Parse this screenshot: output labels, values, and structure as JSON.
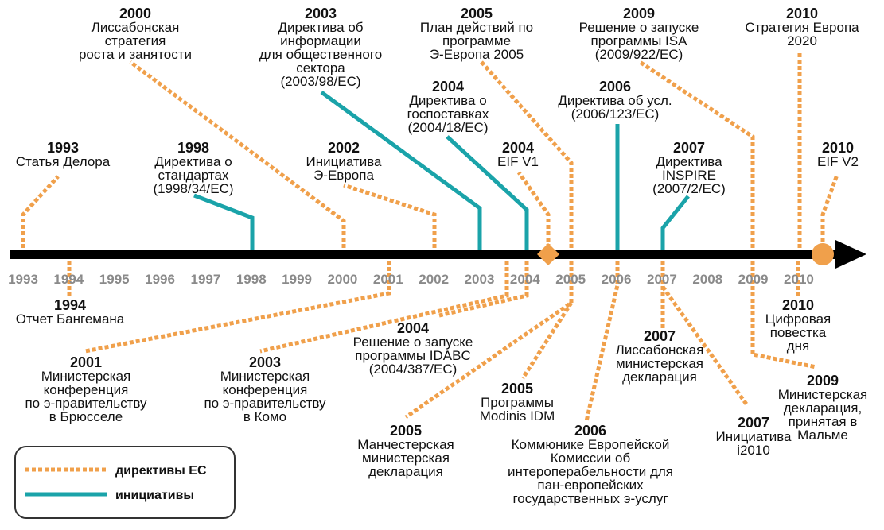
{
  "colors": {
    "directive": "#f0a04b",
    "initiative": "#1aa3a9",
    "axis": "#000000",
    "tick_label": "#8a8a8a"
  },
  "axis_years": [
    "1993",
    "1994",
    "1995",
    "1996",
    "1997",
    "1998",
    "1999",
    "2000",
    "2001",
    "2002",
    "2003",
    "2004",
    "2005",
    "2006",
    "2007",
    "2008",
    "2009",
    "2010"
  ],
  "events": [
    {
      "id": "e1993",
      "year": "1993",
      "lines": [
        "Статья Делора"
      ],
      "kind": "directive"
    },
    {
      "id": "e1998",
      "year": "1998",
      "lines": [
        "Директива о",
        "стандартах",
        "(1998/34/EC)"
      ],
      "kind": "initiative"
    },
    {
      "id": "e2000",
      "year": "2000",
      "lines": [
        "Лиссабонская",
        "стратегия",
        "роста и занятости"
      ],
      "kind": "directive"
    },
    {
      "id": "e2002",
      "year": "2002",
      "lines": [
        "Инициатива",
        "Э-Европа"
      ],
      "kind": "directive"
    },
    {
      "id": "e2003a",
      "year": "2003",
      "lines": [
        "Директива об",
        "информации",
        "для общественного",
        "сектора",
        "(2003/98/EC)"
      ],
      "kind": "initiative"
    },
    {
      "id": "e2004a",
      "year": "2004",
      "lines": [
        "Директива о",
        "госпоставках",
        "(2004/18/EC)"
      ],
      "kind": "initiative"
    },
    {
      "id": "e2004b",
      "year": "2004",
      "lines": [
        "EIF V1"
      ],
      "kind": "directive",
      "marker": "diamond"
    },
    {
      "id": "e2005a",
      "year": "2005",
      "lines": [
        "План действий по",
        "программе",
        "Э-Европа 2005"
      ],
      "kind": "directive"
    },
    {
      "id": "e2006a",
      "year": "2006",
      "lines": [
        "Директива об усл.",
        "(2006/123/EC)"
      ],
      "kind": "initiative"
    },
    {
      "id": "e2007a",
      "year": "2007",
      "lines": [
        "Директива",
        "INSPIRE",
        "(2007/2/EC)"
      ],
      "kind": "initiative"
    },
    {
      "id": "e2009a",
      "year": "2009",
      "lines": [
        "Решение о запуске",
        "программы ISA",
        "(2009/922/EC)"
      ],
      "kind": "directive"
    },
    {
      "id": "e2010a",
      "year": "2010",
      "lines": [
        "Стратегия Европа",
        "2020"
      ],
      "kind": "directive"
    },
    {
      "id": "e2010b",
      "year": "2010",
      "lines": [
        "EIF V2"
      ],
      "kind": "directive",
      "marker": "circle"
    },
    {
      "id": "e1994",
      "year": "1994",
      "lines": [
        "Отчет Бангемана"
      ],
      "kind": "directive"
    },
    {
      "id": "e2001",
      "year": "2001",
      "lines": [
        "Министерская",
        "конференция",
        "по э-правительству",
        "в Брюсселе"
      ],
      "kind": "directive"
    },
    {
      "id": "e2003b",
      "year": "2003",
      "lines": [
        "Министерская",
        "конференция",
        "по э-правительству",
        "в Комо"
      ],
      "kind": "directive"
    },
    {
      "id": "e2004c",
      "year": "2004",
      "lines": [
        "Решение о запуске",
        "программы IDABC",
        "(2004/387/EC)"
      ],
      "kind": "directive"
    },
    {
      "id": "e2005b",
      "year": "2005",
      "lines": [
        "Манчестерская",
        "министерская",
        "декларация"
      ],
      "kind": "directive"
    },
    {
      "id": "e2005c",
      "year": "2005",
      "lines": [
        "Программы",
        "Modinis IDM"
      ],
      "kind": "directive"
    },
    {
      "id": "e2006b",
      "year": "2006",
      "lines": [
        "Коммюнике Европейской",
        "Комиссии об",
        "интероперабельности для",
        "пан-европейских",
        "государственных э-услуг"
      ],
      "kind": "directive"
    },
    {
      "id": "e2007b",
      "year": "2007",
      "lines": [
        "Лиссабонская",
        "министерская",
        "декларация"
      ],
      "kind": "directive"
    },
    {
      "id": "e2007c",
      "year": "2007",
      "lines": [
        "Инициатива",
        "i2010"
      ],
      "kind": "directive"
    },
    {
      "id": "e2009b",
      "year": "2009",
      "lines": [
        "Министерская",
        "декларация,",
        "принятая в",
        "Мальме"
      ],
      "kind": "directive"
    },
    {
      "id": "e2010c",
      "year": "2010",
      "lines": [
        "Цифровая",
        "повестка",
        "дня"
      ],
      "kind": "directive"
    }
  ],
  "legend": {
    "directives": "директивы ЕС",
    "initiatives": "инициативы"
  }
}
